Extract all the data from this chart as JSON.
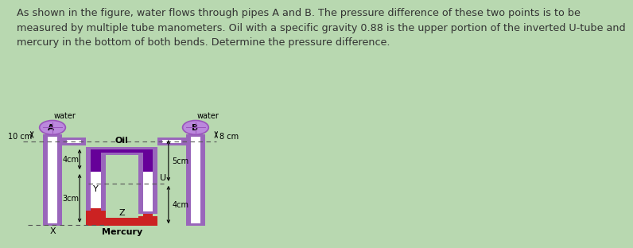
{
  "bg_color": "#b8d8b0",
  "diagram_bg": "#f5f0e0",
  "title_text": "As shown in the figure, water flows through pipes A and B. The pressure difference of these two points is to be\nmeasured by multiple tube manometers. Oil with a specific gravity 0.88 is the upper portion of the inverted U-tube and\nmercury in the bottom of both bends. Determine the pressure difference.",
  "title_fontsize": 9.2,
  "pipe_purple": "#9966bb",
  "pipe_purple_dark": "#7744aa",
  "oil_color": "#660099",
  "mercury_color": "#cc2222",
  "circle_color": "#bb88dd",
  "label_A": "A",
  "label_B": "B",
  "label_water1": "water",
  "label_water2": "water",
  "label_oil": "Oil",
  "label_mercury": "Mercury",
  "label_X": "X",
  "label_Y": "Y",
  "label_Z": "Z",
  "label_U": "U",
  "dim_10cm": "10 cm",
  "dim_4cm_left": "4cm",
  "dim_3cm": "3cm",
  "dim_8cm": "8 cm",
  "dim_5cm": "5cm",
  "dim_4cm_right": "4cm"
}
